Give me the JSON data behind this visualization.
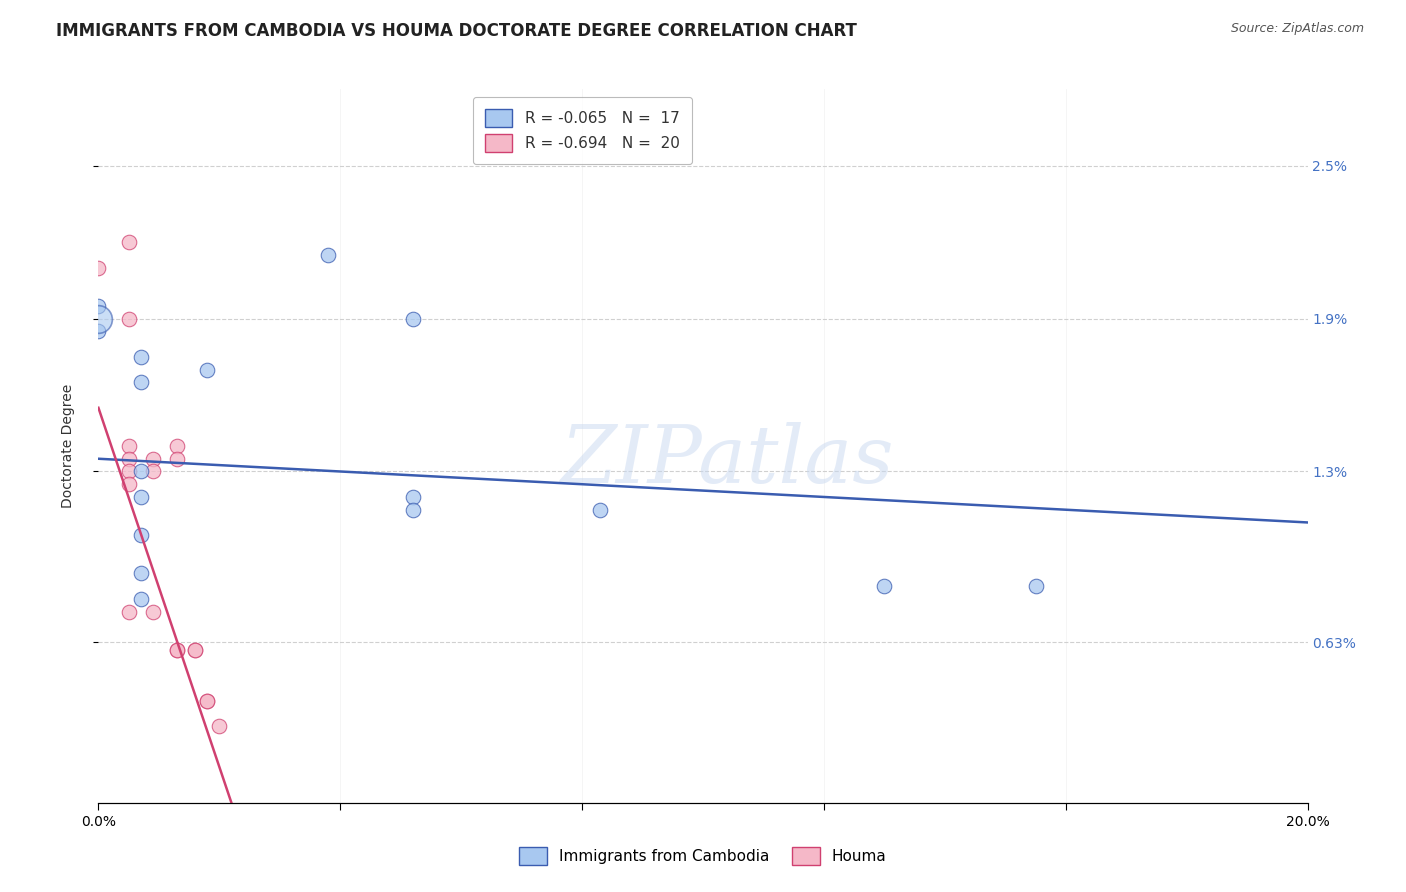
{
  "title": "IMMIGRANTS FROM CAMBODIA VS HOUMA DOCTORATE DEGREE CORRELATION CHART",
  "source": "Source: ZipAtlas.com",
  "ylabel": "Doctorate Degree",
  "legend_blue_r": "R = ",
  "legend_blue_rv": "-0.065",
  "legend_blue_n": "N = ",
  "legend_blue_nv": " 17",
  "legend_pink_r": "R = ",
  "legend_pink_rv": "-0.694",
  "legend_pink_n": "N = ",
  "legend_pink_nv": " 20",
  "legend_blue_label": "Immigrants from Cambodia",
  "legend_pink_label": "Houma",
  "xlim": [
    0,
    0.2
  ],
  "ylim": [
    0,
    0.028
  ],
  "yticks": [
    0.0063,
    0.013,
    0.019,
    0.025
  ],
  "ytick_labels": [
    "0.63%",
    "1.3%",
    "1.9%",
    "2.5%"
  ],
  "xticks": [
    0.0,
    0.04,
    0.08,
    0.12,
    0.16,
    0.2
  ],
  "xtick_labels": [
    "0.0%",
    "",
    "",
    "",
    "",
    "20.0%"
  ],
  "blue_points": [
    [
      0.0,
      0.0195
    ],
    [
      0.0,
      0.0185
    ],
    [
      0.007,
      0.0175
    ],
    [
      0.007,
      0.0165
    ],
    [
      0.007,
      0.013
    ],
    [
      0.007,
      0.012
    ],
    [
      0.007,
      0.0105
    ],
    [
      0.007,
      0.009
    ],
    [
      0.007,
      0.008
    ],
    [
      0.018,
      0.017
    ],
    [
      0.038,
      0.0215
    ],
    [
      0.052,
      0.019
    ],
    [
      0.052,
      0.012
    ],
    [
      0.052,
      0.0115
    ],
    [
      0.083,
      0.0115
    ],
    [
      0.13,
      0.0085
    ],
    [
      0.155,
      0.0085
    ]
  ],
  "blue_large_point": [
    0.0,
    0.019
  ],
  "pink_points": [
    [
      0.0,
      0.021
    ],
    [
      0.005,
      0.022
    ],
    [
      0.005,
      0.019
    ],
    [
      0.005,
      0.014
    ],
    [
      0.005,
      0.0135
    ],
    [
      0.005,
      0.013
    ],
    [
      0.005,
      0.0125
    ],
    [
      0.005,
      0.0075
    ],
    [
      0.009,
      0.0135
    ],
    [
      0.009,
      0.013
    ],
    [
      0.009,
      0.0075
    ],
    [
      0.013,
      0.014
    ],
    [
      0.013,
      0.0135
    ],
    [
      0.013,
      0.006
    ],
    [
      0.013,
      0.006
    ],
    [
      0.016,
      0.006
    ],
    [
      0.016,
      0.006
    ],
    [
      0.018,
      0.004
    ],
    [
      0.018,
      0.004
    ],
    [
      0.02,
      0.003
    ]
  ],
  "blue_line_x": [
    0.0,
    0.2
  ],
  "blue_line_y": [
    0.0135,
    0.011
  ],
  "pink_line_x": [
    0.0,
    0.022
  ],
  "pink_line_y": [
    0.0155,
    0.0
  ],
  "background_color": "#ffffff",
  "grid_color": "#d0d0d0",
  "blue_color": "#a8c8f0",
  "pink_color": "#f5b8c8",
  "blue_line_color": "#3a5cb0",
  "pink_line_color": "#d04070",
  "watermark": "ZIPatlas",
  "title_fontsize": 12,
  "axis_label_fontsize": 10,
  "tick_fontsize": 10,
  "marker_size": 110,
  "large_marker_size": 400
}
